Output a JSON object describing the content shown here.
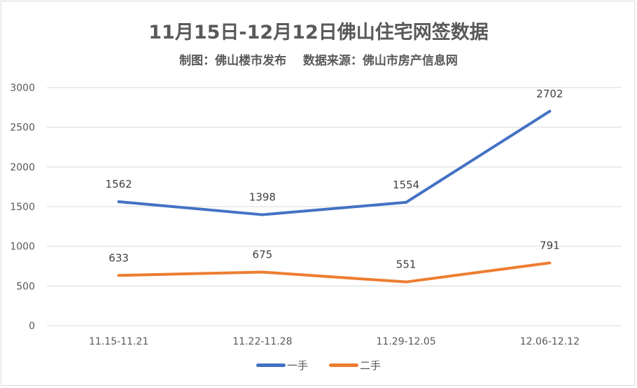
{
  "chart_data": {
    "type": "line",
    "title": "11月15日-12月12日佛山住宅网签数据",
    "subtitle": "制图：佛山楼市发布    数据来源：佛山市房产信息网",
    "categories": [
      "11.15-11.21",
      "11.22-11.28",
      "11.29-12.05",
      "12.06-12.12"
    ],
    "series": [
      {
        "name": "一手",
        "color": "#4472c4",
        "values": [
          1562,
          1398,
          1554,
          2702
        ]
      },
      {
        "name": "二手",
        "color": "#ed7d31",
        "values": [
          633,
          675,
          551,
          791
        ]
      }
    ],
    "ylim": [
      0,
      3000
    ],
    "yticks": [
      0,
      500,
      1000,
      1500,
      2000,
      2500,
      3000
    ],
    "grid": true,
    "legend": "bottom",
    "xlabel": "",
    "ylabel": ""
  }
}
